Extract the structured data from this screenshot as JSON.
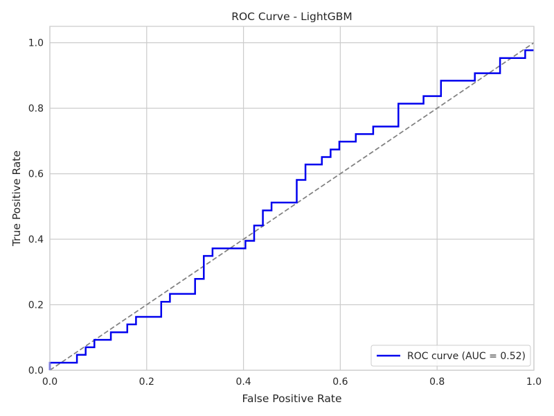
{
  "chart_data": {
    "type": "line",
    "title": "ROC Curve - LightGBM",
    "xlabel": "False Positive Rate",
    "ylabel": "True Positive Rate",
    "xlim": [
      0.0,
      1.0
    ],
    "ylim": [
      0.0,
      1.05
    ],
    "xticks": [
      "0.0",
      "0.2",
      "0.4",
      "0.6",
      "0.8",
      "1.0"
    ],
    "yticks": [
      "0.0",
      "0.2",
      "0.4",
      "0.6",
      "0.8",
      "1.0"
    ],
    "xtick_values": [
      0.0,
      0.2,
      0.4,
      0.6,
      0.8,
      1.0
    ],
    "ytick_values": [
      0.0,
      0.2,
      0.4,
      0.6,
      0.8,
      1.0
    ],
    "grid": true,
    "legend_position": "lower-right",
    "series": [
      {
        "name": "ROC curve (AUC = 0.52)",
        "color": "#0000ee",
        "style": "solid-step",
        "x": [
          0.0,
          0.0,
          0.056,
          0.056,
          0.074,
          0.074,
          0.092,
          0.092,
          0.126,
          0.126,
          0.16,
          0.16,
          0.178,
          0.178,
          0.23,
          0.23,
          0.248,
          0.248,
          0.3,
          0.3,
          0.318,
          0.318,
          0.336,
          0.336,
          0.404,
          0.404,
          0.422,
          0.422,
          0.44,
          0.44,
          0.458,
          0.458,
          0.51,
          0.51,
          0.528,
          0.528,
          0.562,
          0.562,
          0.58,
          0.58,
          0.598,
          0.598,
          0.632,
          0.632,
          0.668,
          0.668,
          0.72,
          0.72,
          0.772,
          0.772,
          0.808,
          0.808,
          0.878,
          0.878,
          0.93,
          0.93,
          0.982,
          0.982,
          1.0
        ],
        "y": [
          0.0,
          0.023,
          0.023,
          0.047,
          0.047,
          0.07,
          0.07,
          0.093,
          0.093,
          0.116,
          0.116,
          0.14,
          0.14,
          0.163,
          0.163,
          0.209,
          0.209,
          0.233,
          0.233,
          0.279,
          0.279,
          0.349,
          0.349,
          0.372,
          0.372,
          0.395,
          0.395,
          0.442,
          0.442,
          0.488,
          0.488,
          0.512,
          0.512,
          0.581,
          0.581,
          0.628,
          0.628,
          0.651,
          0.651,
          0.674,
          0.674,
          0.698,
          0.698,
          0.721,
          0.721,
          0.744,
          0.744,
          0.814,
          0.814,
          0.837,
          0.837,
          0.884,
          0.884,
          0.907,
          0.907,
          0.953,
          0.953,
          0.977,
          0.977
        ]
      },
      {
        "name": "",
        "color": "#808080",
        "style": "dashed",
        "x": [
          0.0,
          1.0
        ],
        "y": [
          0.0,
          1.0
        ]
      }
    ]
  }
}
